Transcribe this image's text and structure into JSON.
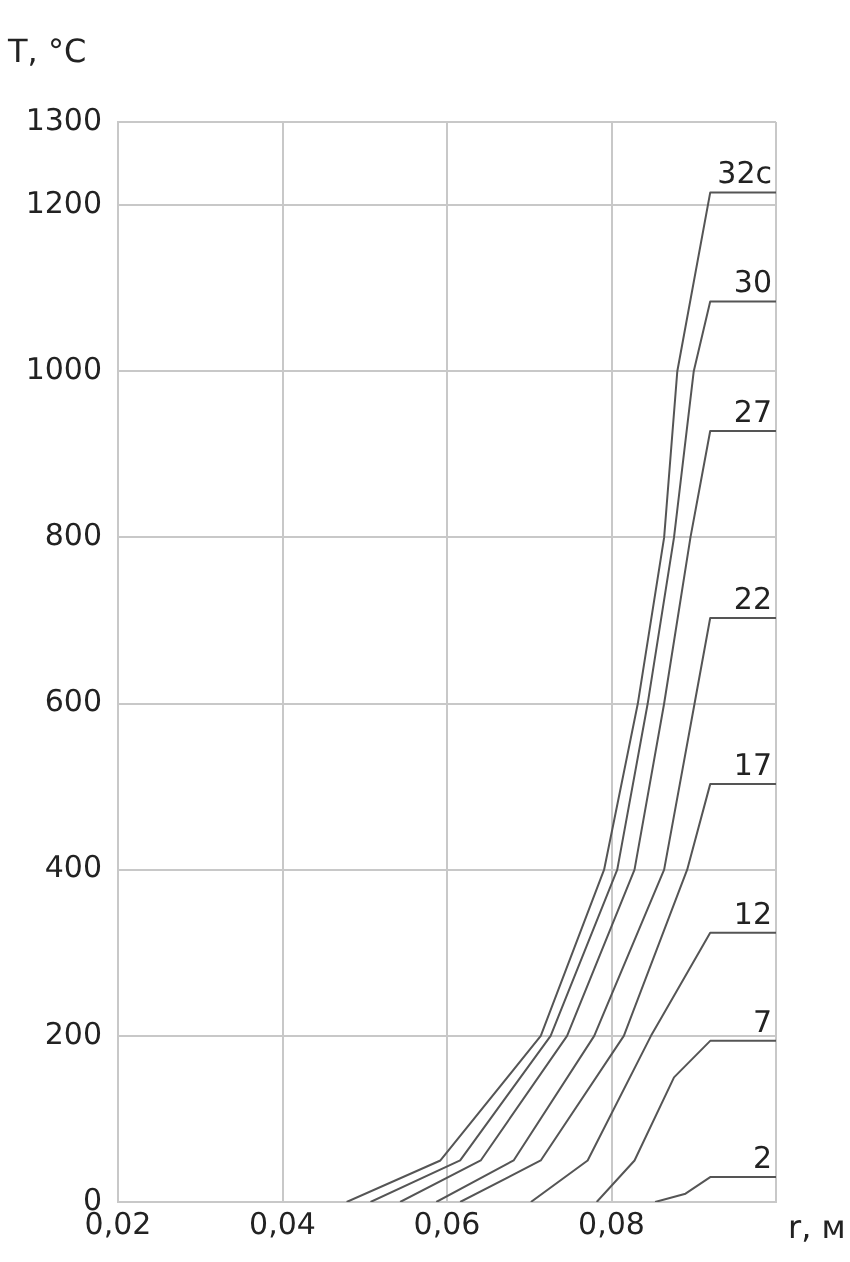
{
  "chart_data": {
    "type": "line",
    "xlabel": "r, м",
    "ylabel": "T, °C",
    "xlim": [
      0.02,
      0.1
    ],
    "xticks": [
      {
        "value": 0.02,
        "label": "0,02"
      },
      {
        "value": 0.04,
        "label": "0,04"
      },
      {
        "value": 0.06,
        "label": "0,06"
      },
      {
        "value": 0.08,
        "label": "0,08"
      },
      {
        "value": 0.1,
        "label": null
      }
    ],
    "ylim": [
      0,
      1300
    ],
    "yticks": [
      0,
      200,
      400,
      600,
      800,
      1000,
      1200,
      1300
    ],
    "grid": true,
    "legend": false,
    "marker": "none",
    "line_style": "solid",
    "series": [
      {
        "name": "32c",
        "color": "#555555",
        "x": [
          0.0478,
          0.0592,
          0.0714,
          0.0791,
          0.0832,
          0.0864,
          0.088,
          0.092,
          0.1
        ],
        "values": [
          0,
          50,
          200,
          400,
          600,
          800,
          1000,
          1215,
          1215
        ]
      },
      {
        "name": "30",
        "color": "#555555",
        "x": [
          0.0507,
          0.0616,
          0.0726,
          0.0807,
          0.0844,
          0.0876,
          0.09,
          0.092,
          0.1
        ],
        "values": [
          0,
          50,
          200,
          400,
          600,
          800,
          1000,
          1084,
          1084
        ]
      },
      {
        "name": "27",
        "color": "#555555",
        "x": [
          0.0543,
          0.0641,
          0.0746,
          0.0828,
          0.0864,
          0.0896,
          0.092,
          0.1
        ],
        "values": [
          0,
          50,
          200,
          400,
          600,
          800,
          928,
          928
        ]
      },
      {
        "name": "22",
        "color": "#555555",
        "x": [
          0.0587,
          0.0681,
          0.0779,
          0.0864,
          0.0901,
          0.092,
          0.1
        ],
        "values": [
          0,
          50,
          200,
          400,
          600,
          703,
          703
        ]
      },
      {
        "name": "17",
        "color": "#555555",
        "x": [
          0.0616,
          0.0714,
          0.0815,
          0.0892,
          0.092,
          0.1
        ],
        "values": [
          0,
          50,
          200,
          400,
          503,
          503
        ]
      },
      {
        "name": "12",
        "color": "#555555",
        "x": [
          0.0702,
          0.0771,
          0.0848,
          0.092,
          0.1
        ],
        "values": [
          0,
          50,
          200,
          324,
          324
        ]
      },
      {
        "name": "7",
        "color": "#555555",
        "x": [
          0.0782,
          0.0828,
          0.0876,
          0.092,
          0.1
        ],
        "values": [
          0,
          50,
          150,
          194,
          194
        ]
      },
      {
        "name": "2",
        "color": "#555555",
        "x": [
          0.0853,
          0.089,
          0.092,
          0.1
        ],
        "values": [
          0,
          10,
          30,
          30
        ]
      }
    ]
  }
}
